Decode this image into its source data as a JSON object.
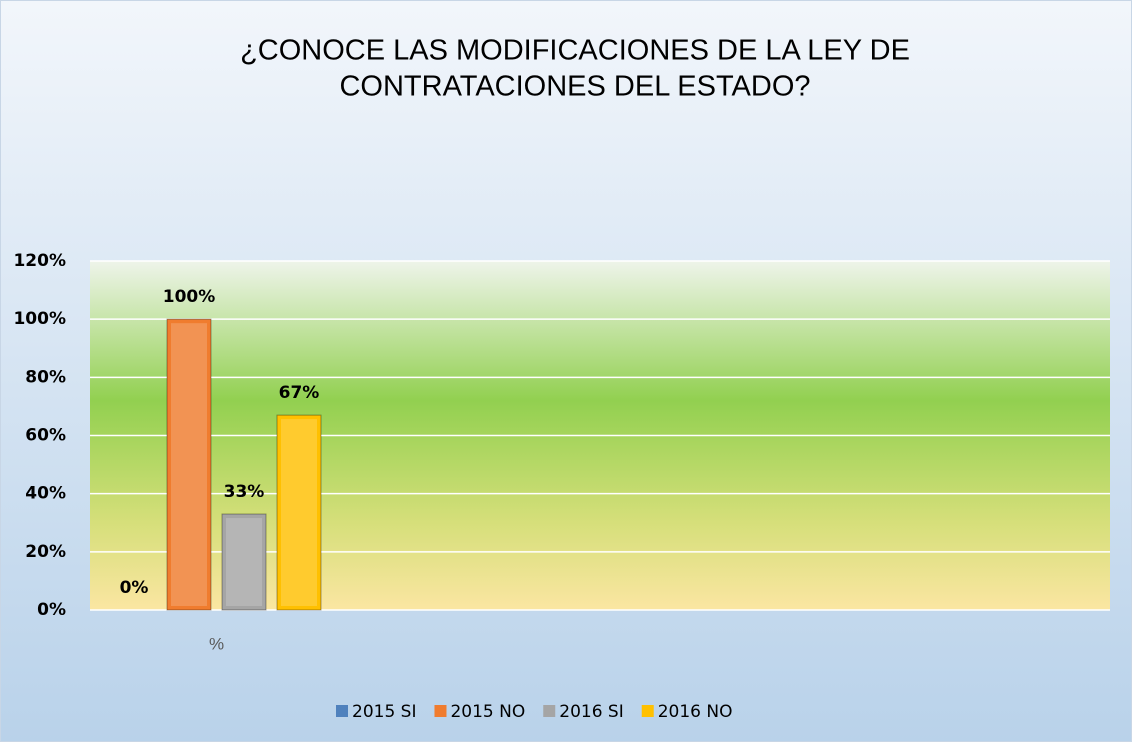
{
  "chart_data": {
    "type": "bar",
    "title": [
      "¿CONOCE LAS MODIFICACIONES DE LA LEY DE",
      "CONTRATACIONES DEL ESTADO?"
    ],
    "categories": [
      "%"
    ],
    "series": [
      {
        "name": "2015 SI",
        "color": "#4f81bd",
        "values": [
          0
        ],
        "value_labels": [
          "0%"
        ]
      },
      {
        "name": "2015 NO",
        "color": "#f07c2e",
        "values": [
          100
        ],
        "value_labels": [
          "100%"
        ]
      },
      {
        "name": "2016 SI",
        "color": "#a5a5a5",
        "values": [
          33
        ],
        "value_labels": [
          "33%"
        ]
      },
      {
        "name": "2016 NO",
        "color": "#ffc000",
        "values": [
          67
        ],
        "value_labels": [
          "67%"
        ]
      }
    ],
    "ylim": [
      0,
      120
    ],
    "yticks": [
      {
        "value": 0,
        "label": "0%"
      },
      {
        "value": 20,
        "label": "20%"
      },
      {
        "value": 40,
        "label": "40%"
      },
      {
        "value": 60,
        "label": "60%"
      },
      {
        "value": 80,
        "label": "80%"
      },
      {
        "value": 100,
        "label": "100%"
      },
      {
        "value": 120,
        "label": "120%"
      }
    ],
    "grid": true,
    "legend": "bottom"
  }
}
